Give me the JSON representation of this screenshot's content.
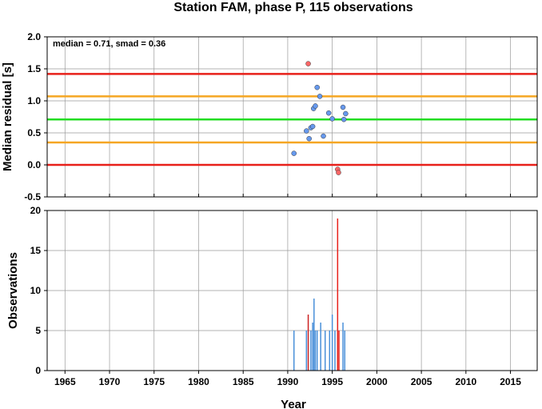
{
  "chart_data": [
    {
      "type": "scatter",
      "title": "Station FAM, phase P, 115 observations",
      "ylabel": "Median residual [s]",
      "annotation": "median = 0.71, smad = 0.36",
      "xlim": [
        1963,
        2018
      ],
      "ylim": [
        -0.5,
        2.0
      ],
      "xticks": [
        "1965",
        "1970",
        "1975",
        "1980",
        "1985",
        "1990",
        "1995",
        "2000",
        "2005",
        "2010",
        "2015"
      ],
      "yticks": [
        "-0.5",
        "0.0",
        "0.5",
        "1.0",
        "1.5",
        "2.0"
      ],
      "grid": true,
      "reference_lines": [
        {
          "y": 1.42,
          "color": "#e8201a"
        },
        {
          "y": 1.07,
          "color": "#f5a623"
        },
        {
          "y": 0.71,
          "color": "#22dd22"
        },
        {
          "y": 0.35,
          "color": "#f5a623"
        },
        {
          "y": 0.0,
          "color": "#e8201a"
        }
      ],
      "series": [
        {
          "color": "#6699ee",
          "points": [
            [
              1990.7,
              0.18
            ],
            [
              1992.1,
              0.53
            ],
            [
              1992.4,
              0.41
            ],
            [
              1992.6,
              0.58
            ],
            [
              1992.8,
              0.6
            ],
            [
              1992.9,
              0.88
            ],
            [
              1993.1,
              0.92
            ],
            [
              1993.3,
              1.21
            ],
            [
              1993.6,
              1.07
            ],
            [
              1994.0,
              0.45
            ],
            [
              1994.6,
              0.81
            ],
            [
              1995.0,
              0.72
            ],
            [
              1996.2,
              0.9
            ],
            [
              1996.3,
              0.71
            ],
            [
              1996.5,
              0.8
            ]
          ]
        },
        {
          "color": "#ff6666",
          "points": [
            [
              1992.3,
              1.58
            ],
            [
              1995.6,
              -0.07
            ],
            [
              1995.7,
              -0.12
            ]
          ]
        }
      ]
    },
    {
      "type": "bar",
      "ylabel": "Observations",
      "xlabel": "Year",
      "xlim": [
        1963,
        2018
      ],
      "ylim": [
        0,
        20
      ],
      "xticks": [
        "1965",
        "1970",
        "1975",
        "1980",
        "1985",
        "1990",
        "1995",
        "2000",
        "2005",
        "2010",
        "2015"
      ],
      "yticks": [
        "0",
        "5",
        "10",
        "15",
        "20"
      ],
      "grid": true,
      "bars": [
        {
          "x": 1990.7,
          "value": 5,
          "color": "#4a90d9"
        },
        {
          "x": 1992.1,
          "value": 5,
          "color": "#4a90d9"
        },
        {
          "x": 1992.3,
          "value": 7,
          "color": "#cc2222"
        },
        {
          "x": 1992.6,
          "value": 5,
          "color": "#4a90d9"
        },
        {
          "x": 1992.8,
          "value": 6,
          "color": "#4a90d9"
        },
        {
          "x": 1992.95,
          "value": 9,
          "color": "#4a90d9"
        },
        {
          "x": 1993.1,
          "value": 5,
          "color": "#4a90d9"
        },
        {
          "x": 1993.3,
          "value": 5,
          "color": "#4a90d9"
        },
        {
          "x": 1993.7,
          "value": 6,
          "color": "#4a90d9"
        },
        {
          "x": 1994.2,
          "value": 5,
          "color": "#4a90d9"
        },
        {
          "x": 1994.7,
          "value": 5,
          "color": "#4a90d9"
        },
        {
          "x": 1995.0,
          "value": 7,
          "color": "#4a90d9"
        },
        {
          "x": 1995.3,
          "value": 5,
          "color": "#4a90d9"
        },
        {
          "x": 1995.6,
          "value": 19,
          "color": "#e8201a"
        },
        {
          "x": 1995.75,
          "value": 5,
          "color": "#e8201a"
        },
        {
          "x": 1996.2,
          "value": 6,
          "color": "#4a90d9"
        },
        {
          "x": 1996.4,
          "value": 5,
          "color": "#4a90d9"
        }
      ]
    }
  ]
}
